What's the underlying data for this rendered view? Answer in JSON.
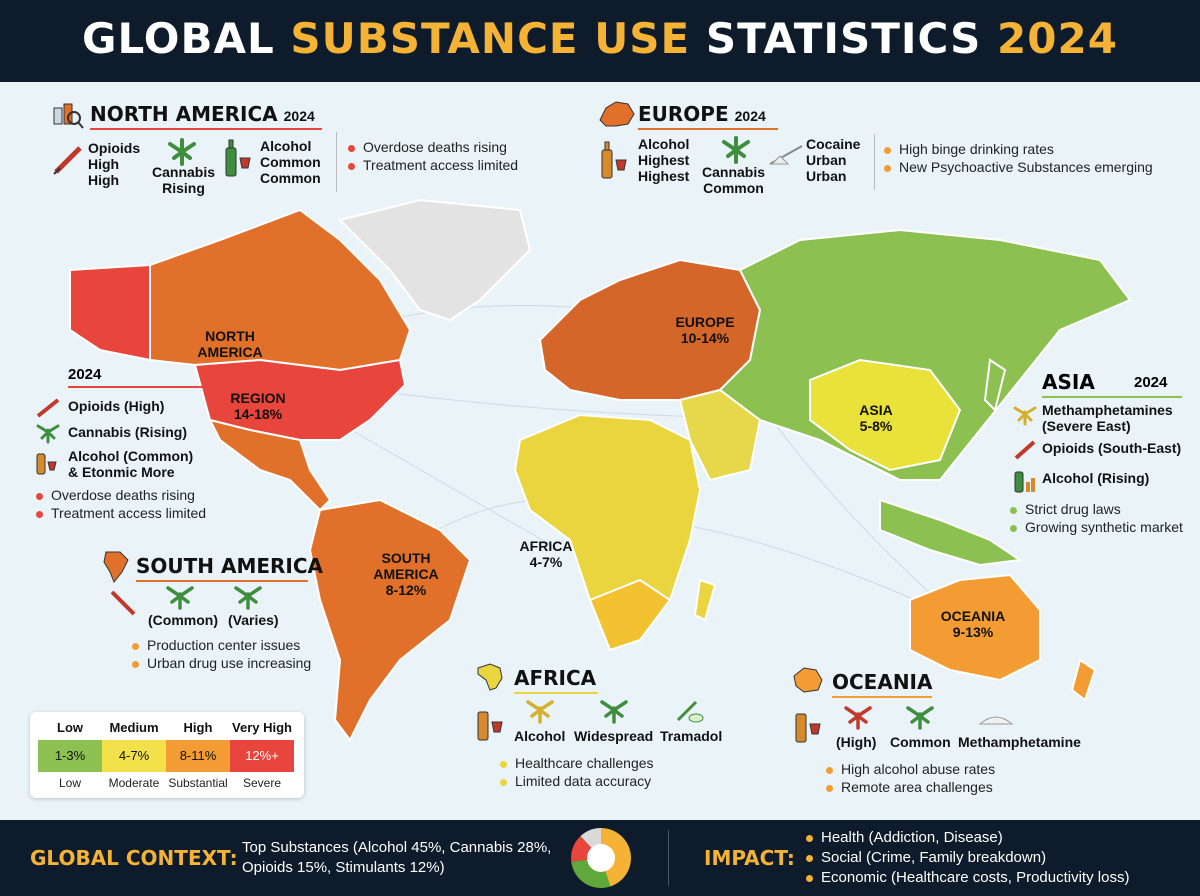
{
  "header": {
    "title_part1": "GLOBAL",
    "title_part2": "SUBSTANCE USE",
    "title_part3": "STATISTICS",
    "title_part4": "2024"
  },
  "colors": {
    "low": "#8cc152",
    "medium": "#f2e14a",
    "high": "#f39c33",
    "very_high": "#e8453c",
    "orange_high": "#e0702a",
    "accent": "#f5b335",
    "background": "#0d1b2a"
  },
  "map_labels": {
    "north_america": "NORTH\nAMERICA",
    "region": "REGION\n14-18%",
    "south_america": "SOUTH\nAMERICA\n8-12%",
    "europe": "EUROPE\n10-14%",
    "africa": "AFRICA\n4-7%",
    "asia": "ASIA\n5-8%",
    "oceania": "OCEANIA\n9-13%"
  },
  "north_america_panel": {
    "title": "NORTH AMERICA",
    "year": "2024",
    "items": [
      {
        "icon": "syringe-icon",
        "label": "Opioids\nHigh\nHigh"
      },
      {
        "icon": "cannabis-leaf-icon",
        "label": "Cannabis\nRising"
      },
      {
        "icon": "alcohol-bottle-icon",
        "label": "Alcohol\nCommon\nCommon"
      }
    ],
    "bullets": [
      "Overdose deaths rising",
      "Treatment access limited"
    ]
  },
  "north_america_side": {
    "year": "2024",
    "items": [
      "Opioids (High)",
      "Cannabis (Rising)",
      "Alcohol (Common)\n& Etonmic More"
    ],
    "bullets": [
      "Overdose deaths rising",
      "Treatment access limited"
    ]
  },
  "europe_panel": {
    "title": "EUROPE",
    "year": "2024",
    "items": [
      {
        "icon": "alcohol-bottle-icon",
        "label": "Alcohol\nHighest\nHighest"
      },
      {
        "icon": "cannabis-leaf-icon",
        "label": "Cannabis\nCommon"
      },
      {
        "icon": "cocaine-icon",
        "label": "Cocaine\nUrban\nUrban"
      }
    ],
    "bullets": [
      "High binge drinking rates",
      "New Psychoactive Substances emerging"
    ]
  },
  "asia_panel": {
    "title": "ASIA",
    "year": "2024",
    "items": [
      "Methamphetamines\n(Severe East)",
      "Opioids (South-East)",
      "Alcohol (Rising)"
    ],
    "bullets": [
      "Strict drug laws",
      "Growing synthetic market"
    ]
  },
  "south_america_panel": {
    "title": "SOUTH AMERICA",
    "items": [
      "(Common)",
      "(Varies)"
    ],
    "bullets": [
      "Production center issues",
      "Urban drug use increasing"
    ]
  },
  "africa_panel": {
    "title": "AFRICA",
    "items": [
      "Alcohol",
      "Widespread",
      "Tramadol"
    ],
    "bullets": [
      "Healthcare challenges",
      "Limited data accuracy"
    ]
  },
  "oceania_panel": {
    "title": "OCEANIA",
    "items": [
      "(High)",
      "Common",
      "Methamphetamine"
    ],
    "bullets": [
      "High alcohol abuse rates",
      "Remote area challenges"
    ]
  },
  "legend": {
    "headers": [
      "Low",
      "Medium",
      "High",
      "Very High"
    ],
    "ranges": [
      "1-3%",
      "4-7%",
      "8-11%",
      "12%+"
    ],
    "sublabels": [
      "Low",
      "Moderate",
      "Substantial",
      "Severe"
    ]
  },
  "footer": {
    "context_label": "GLOBAL CONTEXT:",
    "context_text": "Top Substances (Alcohol 45%, Cannabis 28%,\nOpioids 15%, Stimulants 12%)",
    "impact_label": "IMPACT:",
    "impact_items": [
      "Health (Addiction, Disease)",
      "Social (Crime, Family breakdown)",
      "Economic (Healthcare costs, Productivity loss)"
    ]
  },
  "chart_data": {
    "type": "pie",
    "categories": [
      "Alcohol",
      "Cannabis",
      "Opioids",
      "Stimulants"
    ],
    "values": [
      45,
      28,
      15,
      12
    ],
    "colors": [
      "#f5b335",
      "#5fa83a",
      "#e8453c",
      "#d9d9d9"
    ]
  }
}
